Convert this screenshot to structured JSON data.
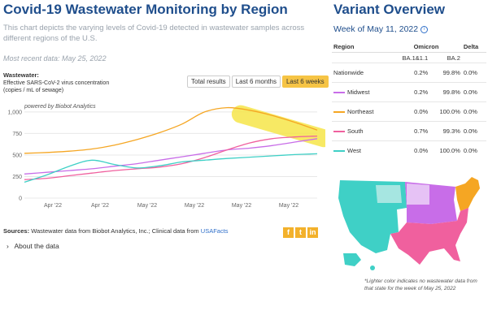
{
  "page": {
    "title": "Covid-19 Wastewater Monitoring by Region",
    "subtitle": "This chart depicts the varying levels of Covid-19 detected in wastewater samples across different regions of the U.S.",
    "recent": "Most recent data: May 25, 2022"
  },
  "ylabel": {
    "heading": "Wastewater:",
    "line1": "Effective SARS-CoV-2 virus concentration",
    "line2": "(copies / mL of sewage)"
  },
  "range_buttons": [
    "Total results",
    "Last 6 months",
    "Last 6 weeks"
  ],
  "active_range": "Last 6 weeks",
  "chart_data": {
    "type": "line",
    "annotation": "powered by Biobot Analytics",
    "xlabel": "",
    "ylabel": "",
    "ylim": [
      0,
      1150
    ],
    "yticks": [
      0,
      250,
      500,
      750,
      1000
    ],
    "ytick_labels": [
      "0",
      "250",
      "500",
      "750",
      "1,000"
    ],
    "xtick_labels": [
      "Apr '22",
      "Apr '22",
      "May '22",
      "May '22",
      "May '22",
      "May '22"
    ],
    "x": [
      0,
      1,
      2,
      3,
      4,
      5,
      6,
      7,
      8,
      9,
      10,
      11,
      12,
      13
    ],
    "series": [
      {
        "name": "Northeast",
        "color": "#f5a623",
        "values": [
          520,
          530,
          545,
          570,
          615,
          680,
          760,
          860,
          1000,
          1050,
          1020,
          960,
          880,
          790
        ]
      },
      {
        "name": "Midwest",
        "color": "#c86de8",
        "values": [
          280,
          300,
          320,
          340,
          370,
          400,
          440,
          480,
          520,
          560,
          580,
          610,
          650,
          690
        ]
      },
      {
        "name": "South",
        "color": "#f0609e",
        "values": [
          215,
          230,
          260,
          290,
          320,
          340,
          360,
          400,
          470,
          560,
          640,
          690,
          710,
          720
        ]
      },
      {
        "name": "West",
        "color": "#3fd0c6",
        "values": [
          185,
          270,
          370,
          440,
          390,
          350,
          375,
          420,
          440,
          460,
          475,
          490,
          505,
          515
        ]
      }
    ]
  },
  "sources": {
    "label": "Sources:",
    "text": "Wastewater data from Biobot Analytics, Inc.; Clinical data from",
    "link": "USAFacts"
  },
  "social": [
    "f",
    "t",
    "in"
  ],
  "about": {
    "chevron": "›",
    "label": "About the data"
  },
  "variant": {
    "title": "Variant Overview",
    "week": "Week of May 11, 2022",
    "info_glyph": "i",
    "headers": {
      "region": "Region",
      "omicron": "Omicron",
      "delta": "Delta",
      "sub1": "BA.1&1.1",
      "sub2": "BA.2"
    },
    "rows": [
      {
        "region": "Nationwide",
        "ba1": "0.2%",
        "ba2": "99.8%",
        "delta": "0.0%",
        "color": ""
      },
      {
        "region": "Midwest",
        "ba1": "0.2%",
        "ba2": "99.8%",
        "delta": "0.0%",
        "color": "#c86de8"
      },
      {
        "region": "Northeast",
        "ba1": "0.0%",
        "ba2": "100.0%",
        "delta": "0.0%",
        "color": "#f5a623"
      },
      {
        "region": "South",
        "ba1": "0.7%",
        "ba2": "99.3%",
        "delta": "0.0%",
        "color": "#f0609e"
      },
      {
        "region": "West",
        "ba1": "0.0%",
        "ba2": "100.0%",
        "delta": "0.0%",
        "color": "#3fd0c6"
      }
    ]
  },
  "map_note": "*Lighter color indicates no wastewater data from that state for the week of May 25, 2022",
  "colors": {
    "northeast": "#f5a623",
    "midwest": "#c86de8",
    "south": "#f0609e",
    "west": "#3fd0c6",
    "highlight": "#f6e64a"
  }
}
